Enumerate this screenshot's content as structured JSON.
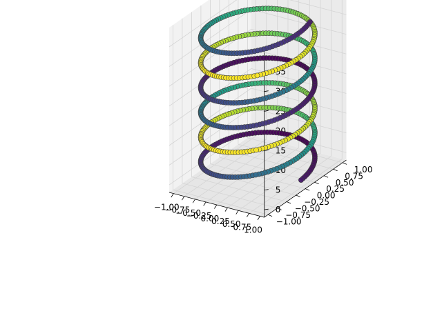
{
  "chart_data": {
    "type": "scatter",
    "projection": "3d",
    "title": "",
    "xlabel": "",
    "ylabel": "",
    "zlabel": "",
    "grid": true,
    "legend": "none",
    "colormap": "viridis",
    "xlim": [
      -1.1,
      1.1
    ],
    "ylim": [
      -1.1,
      1.1
    ],
    "zlim": [
      -1.9,
      39.9
    ],
    "x_ticks": [
      "−1.00",
      "−0.75",
      "−0.50",
      "−0.25",
      "0.00",
      "0.25",
      "0.50",
      "0.75",
      "1.00"
    ],
    "y_ticks": [
      "−1.00",
      "−0.75",
      "−0.50",
      "−0.25",
      "0.00",
      "0.25",
      "0.50",
      "0.75",
      "1.00"
    ],
    "z_ticks": [
      "0",
      "5",
      "10",
      "15",
      "20",
      "25",
      "30",
      "35"
    ],
    "series": [
      {
        "shape": "helix",
        "x_function": "cos(t)",
        "y_function": "sin(t)",
        "z_function": "t",
        "t_range": [
          0,
          38
        ],
        "marker": "o",
        "marker_edgecolor": "#404040",
        "color_by": "z (cyclic)",
        "color_scale_min": 0,
        "color_scale_max": 1
      }
    ]
  },
  "colors": {
    "pane_x": "#f2f2f2",
    "pane_y": "#ebebeb",
    "pane_z": "#e6e6e6",
    "grid": "#d4d4d4",
    "axis": "#000000",
    "viridis": [
      "#440154",
      "#482878",
      "#3e4a89",
      "#31688e",
      "#26828e",
      "#1f9e89",
      "#35b779",
      "#6ece58",
      "#b5de2b",
      "#fde725"
    ]
  }
}
